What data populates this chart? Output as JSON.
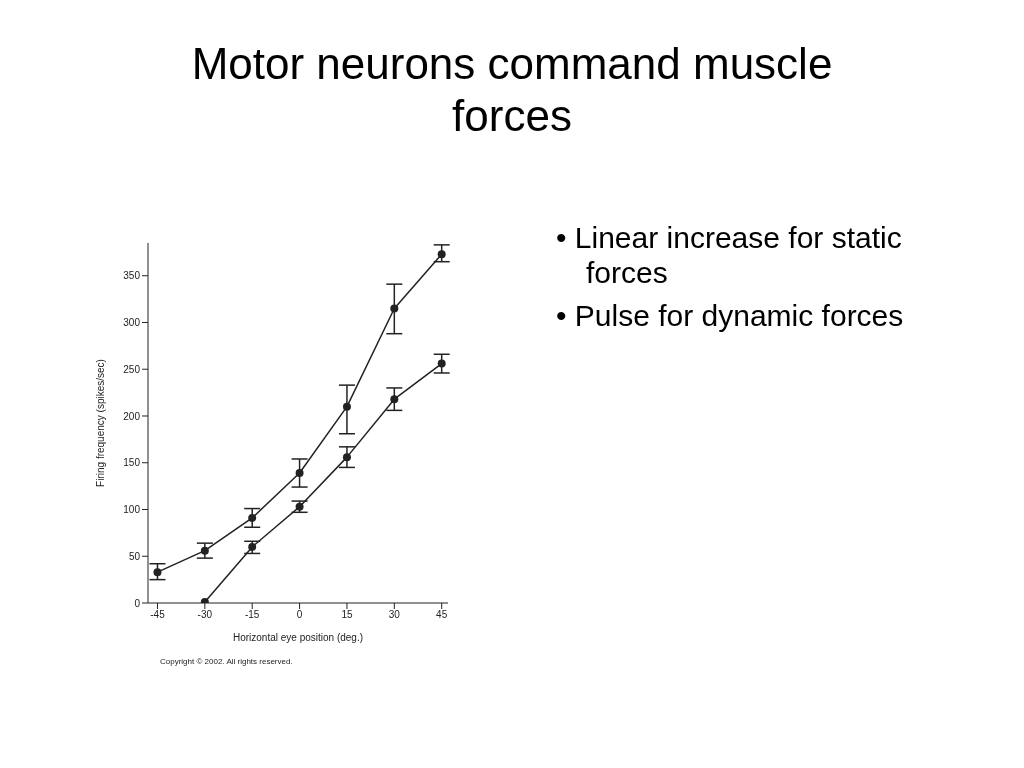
{
  "chart_data": {
    "type": "line",
    "title": "Motor neurons command muscle forces",
    "xlabel": "Horizontal eye position (deg.)",
    "ylabel": "Firing frequency (spikes/sec)",
    "x": [
      -45,
      -30,
      -15,
      0,
      15,
      30,
      45
    ],
    "series": [
      {
        "color": "#222222",
        "values": [
          33,
          56,
          91,
          139,
          210,
          315,
          373
        ],
        "errors": [
          [
            25,
            42
          ],
          [
            48,
            64
          ],
          [
            81,
            101
          ],
          [
            124,
            154
          ],
          [
            181,
            233
          ],
          [
            288,
            341
          ],
          [
            365,
            383
          ]
        ]
      },
      {
        "color": "#222222",
        "values": [
          null,
          1,
          60,
          103,
          156,
          218,
          256
        ],
        "errors": [
          null,
          null,
          [
            53,
            66
          ],
          [
            97,
            109
          ],
          [
            145,
            167
          ],
          [
            206,
            230
          ],
          [
            246,
            266
          ]
        ]
      }
    ],
    "xlim": [
      -48,
      47
    ],
    "xticks": [
      -45,
      -30,
      -15,
      0,
      15,
      30,
      45
    ],
    "ylim": [
      0,
      385
    ],
    "yticks": [
      0,
      50,
      100,
      150,
      200,
      250,
      300,
      350
    ],
    "marker": "circle",
    "line_style": "solid",
    "annotations": [
      "• Linear increase for static forces",
      "• Pulse for dynamic forces",
      "Copyright © 2002. All rights reserved."
    ]
  }
}
